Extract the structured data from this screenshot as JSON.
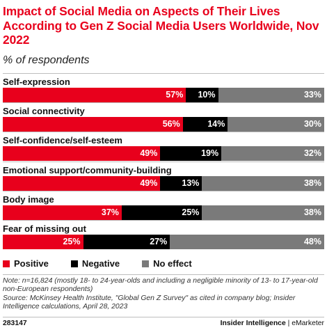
{
  "title": "Impact of Social Media on Aspects of Their Lives According to Gen Z Social Media Users Worldwide, Nov 2022",
  "subtitle": "% of respondents",
  "colors": {
    "positive": "#e8001c",
    "negative": "#000000",
    "no_effect": "#7a7a7a",
    "title": "#e8001c"
  },
  "chart_data": {
    "type": "bar",
    "orientation": "horizontal-stacked-100",
    "categories": [
      "Self-expression",
      "Social connectivity",
      "Self-confidence/self-esteem",
      "Emotional support/community-building",
      "Body image",
      "Fear of missing out"
    ],
    "series": [
      {
        "name": "Positive",
        "values": [
          57,
          56,
          49,
          49,
          37,
          25
        ]
      },
      {
        "name": "Negative",
        "values": [
          10,
          14,
          19,
          13,
          25,
          27
        ]
      },
      {
        "name": "No effect",
        "values": [
          33,
          30,
          32,
          38,
          38,
          48
        ]
      }
    ],
    "value_suffix": "%",
    "legend_placement": "bottom-left",
    "xlim": [
      0,
      100
    ]
  },
  "note": "Note: n=16,824 (mostly 18- to 24-year-olds and including a negligible minority of 13- to 17-year-old non-European respondents)",
  "source": "Source: McKinsey Health Institute, \"Global Gen Z Survey\" as cited in company blog; Insider Intelligence calculations, April 28, 2023",
  "footer": {
    "chart_id": "283147",
    "brand_left": "Insider Intelligence",
    "separator": " | ",
    "brand_right": "eMarketer"
  }
}
